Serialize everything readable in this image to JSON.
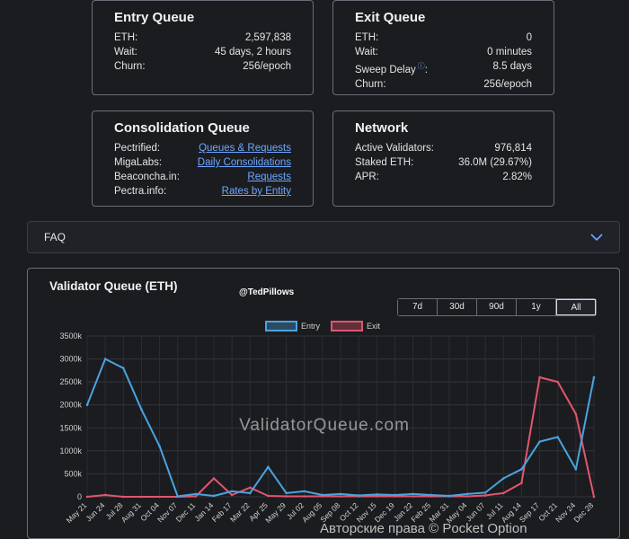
{
  "entry_queue": {
    "title": "Entry Queue",
    "rows": [
      {
        "label": "ETH:",
        "value": "2,597,838"
      },
      {
        "label": "Wait:",
        "value": "45 days, 2 hours"
      },
      {
        "label": "Churn:",
        "value": "256/epoch"
      }
    ]
  },
  "exit_queue": {
    "title": "Exit Queue",
    "rows": [
      {
        "label": "ETH:",
        "value": "0"
      },
      {
        "label": "Wait:",
        "value": "0 minutes"
      },
      {
        "label": "Sweep Delay",
        "value": "8.5 days",
        "icon": "info-icon",
        "suffix": ":"
      },
      {
        "label": "Churn:",
        "value": "256/epoch"
      }
    ]
  },
  "consolidation_queue": {
    "title": "Consolidation Queue",
    "rows": [
      {
        "label": "Pectrified:",
        "link": "Queues & Requests"
      },
      {
        "label": "MigaLabs:",
        "link": "Daily Consolidations"
      },
      {
        "label": "Beaconcha.in:",
        "link": "Requests"
      },
      {
        "label": "Pectra.info:",
        "link": "Rates by Entity"
      }
    ]
  },
  "network": {
    "title": "Network",
    "rows": [
      {
        "label": "Active Validators:",
        "value": "976,814"
      },
      {
        "label": "Staked ETH:",
        "value": "36.0M (29.67%)"
      },
      {
        "label": "APR:",
        "value": "2.82%"
      }
    ]
  },
  "faq": {
    "label": "FAQ",
    "icon": "chevron-down-icon"
  },
  "chart": {
    "title": "Validator Queue (ETH)",
    "handle": "@TedPillows",
    "range_buttons": [
      "7d",
      "30d",
      "90d",
      "1y",
      "All"
    ],
    "active_range": "All",
    "watermark": "ValidatorQueue.com"
  },
  "copyright": "Авторские права © Pocket Option",
  "colors": {
    "entry": "#4aa3df",
    "exit": "#e0566e",
    "link": "#6ea8ff"
  },
  "chart_data": {
    "type": "line",
    "title": "Validator Queue (ETH)",
    "legend": [
      "Entry",
      "Exit"
    ],
    "legend_position": "top-center",
    "ylim": [
      0,
      3500
    ],
    "y_ticks": [
      "0",
      "500k",
      "1000k",
      "1500k",
      "2000k",
      "2500k",
      "3000k",
      "3500k"
    ],
    "categories": [
      "May 21",
      "Jun 24",
      "Jul 28",
      "Aug 31",
      "Oct 04",
      "Nov 07",
      "Dec 11",
      "Jan 14",
      "Feb 17",
      "Mar 22",
      "Apr 25",
      "May 29",
      "Jul 02",
      "Aug 05",
      "Sep 08",
      "Oct 12",
      "Nov 15",
      "Dec 19",
      "Jan 22",
      "Feb 25",
      "Mar 31",
      "May 04",
      "Jun 07",
      "Jul 11",
      "Aug 14",
      "Sep 17",
      "Oct 21",
      "Nov 24",
      "Dec 28"
    ],
    "series": [
      {
        "name": "Entry",
        "values": [
          2000,
          3000,
          2800,
          1900,
          1100,
          10,
          60,
          20,
          120,
          80,
          650,
          80,
          120,
          40,
          60,
          30,
          50,
          40,
          60,
          40,
          20,
          60,
          90,
          400,
          600,
          1200,
          1300,
          600,
          2600
        ]
      },
      {
        "name": "Exit",
        "values": [
          0,
          40,
          0,
          0,
          0,
          0,
          10,
          400,
          40,
          200,
          20,
          10,
          10,
          10,
          10,
          10,
          10,
          10,
          10,
          10,
          10,
          10,
          30,
          80,
          300,
          2600,
          2500,
          1800,
          0
        ]
      }
    ]
  }
}
